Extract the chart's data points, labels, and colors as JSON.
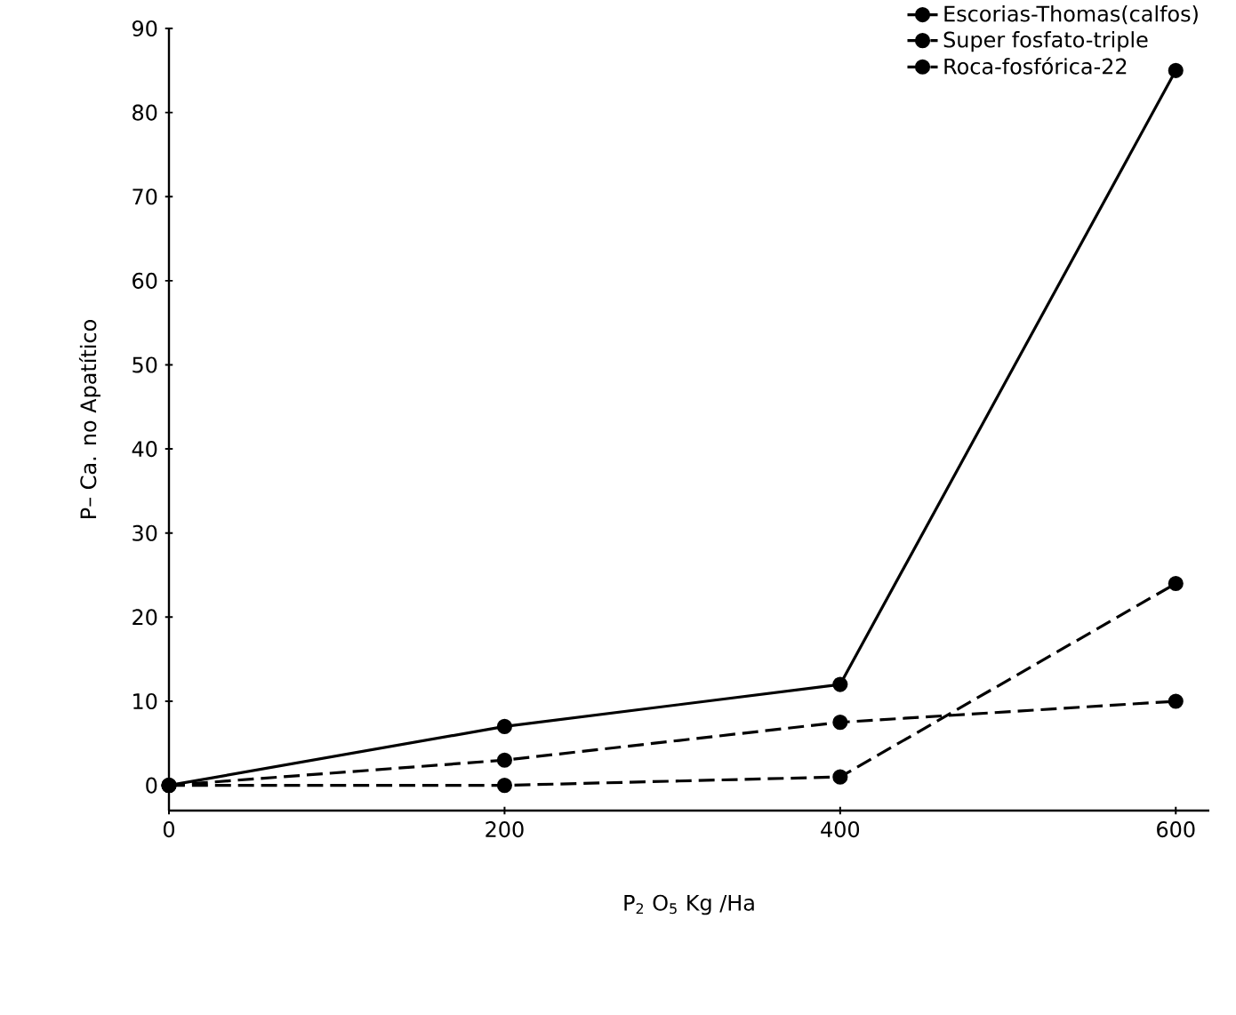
{
  "chart_data": {
    "type": "line",
    "xlabel": "P$_{2}$ O$_{5}$  Kg /Ha",
    "ylabel": "P– Ca. no Apatítico",
    "x": [
      0,
      200,
      400,
      600
    ],
    "series": [
      {
        "name": "Escorias-Thomas(calfos)",
        "color": "#000000",
        "values": [
          0,
          7,
          12,
          85
        ],
        "line_style": "solid"
      },
      {
        "name": "Super fosfato-triple",
        "color": "#000000",
        "values": [
          0,
          0,
          1,
          24
        ],
        "line_style": "dashed"
      },
      {
        "name": "Roca-fosfórica-22",
        "color": "#000000",
        "values": [
          0,
          3,
          7.5,
          10
        ],
        "line_style": "dashed"
      }
    ],
    "xlim": [
      0,
      620
    ],
    "ylim": [
      -3,
      90
    ],
    "xticks": [
      0,
      200,
      400,
      600
    ],
    "yticks": [
      0,
      10,
      20,
      30,
      40,
      50,
      60,
      70,
      80,
      90
    ],
    "marker": "circle",
    "legend": "top right",
    "grid": false
  }
}
